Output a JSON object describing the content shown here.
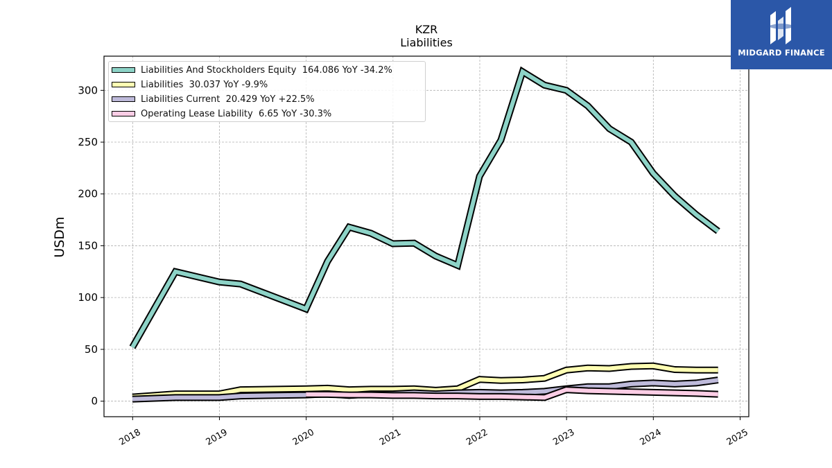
{
  "chart_data": {
    "type": "line",
    "title": "KZR",
    "subtitle": "Liabilities",
    "ylabel": "USDm",
    "xlabel": "",
    "ylim": [
      -15,
      333
    ],
    "xlim": [
      2017.67,
      2025.1
    ],
    "x_ticks": [
      "2018",
      "2019",
      "2020",
      "2021",
      "2022",
      "2023",
      "2024",
      "2025"
    ],
    "y_ticks": [
      "0",
      "50",
      "100",
      "150",
      "200",
      "250",
      "300"
    ],
    "grid": true,
    "legend_position": "top-left",
    "series": [
      {
        "name": "Liabilities And Stockholders Equity",
        "legend": "Liabilities And Stockholders Equity  164.086 YoY -34.2%",
        "color": "#8dd3c7",
        "points": [
          [
            "2017-12-31",
            52
          ],
          [
            "2018-06-30",
            125
          ],
          [
            "2018-12-31",
            115
          ],
          [
            "2019-03-31",
            113
          ],
          [
            "2019-12-31",
            89
          ],
          [
            "2020-03-31",
            135
          ],
          [
            "2020-06-30",
            168
          ],
          [
            "2020-09-30",
            162
          ],
          [
            "2020-12-31",
            152
          ],
          [
            "2021-03-31",
            152.5
          ],
          [
            "2021-06-30",
            140
          ],
          [
            "2021-09-30",
            131
          ],
          [
            "2021-12-31",
            217
          ],
          [
            "2022-03-31",
            252
          ],
          [
            "2022-06-30",
            318
          ],
          [
            "2022-09-30",
            305
          ],
          [
            "2022-12-31",
            300
          ],
          [
            "2023-03-31",
            285
          ],
          [
            "2023-06-30",
            263
          ],
          [
            "2023-09-30",
            250
          ],
          [
            "2023-12-31",
            220
          ],
          [
            "2024-03-31",
            198
          ],
          [
            "2024-06-30",
            180
          ],
          [
            "2024-09-30",
            164.086
          ]
        ]
      },
      {
        "name": "Liabilities",
        "legend": "Liabilities  30.037 YoY -9.9%",
        "color": "#ffffb3",
        "points": [
          [
            "2017-12-31",
            4
          ],
          [
            "2018-06-30",
            7
          ],
          [
            "2018-12-31",
            7
          ],
          [
            "2019-03-31",
            11
          ],
          [
            "2019-12-31",
            12
          ],
          [
            "2020-03-31",
            12.5
          ],
          [
            "2020-06-30",
            11
          ],
          [
            "2020-09-30",
            11.5
          ],
          [
            "2020-12-31",
            11.5
          ],
          [
            "2021-03-31",
            12
          ],
          [
            "2021-06-30",
            10.5
          ],
          [
            "2021-09-30",
            12
          ],
          [
            "2021-12-31",
            21
          ],
          [
            "2022-03-31",
            20
          ],
          [
            "2022-06-30",
            20.5
          ],
          [
            "2022-09-30",
            22
          ],
          [
            "2022-12-31",
            30
          ],
          [
            "2023-03-31",
            32
          ],
          [
            "2023-06-30",
            31.5
          ],
          [
            "2023-09-30",
            33.5
          ],
          [
            "2023-12-31",
            34
          ],
          [
            "2024-03-31",
            30.5
          ],
          [
            "2024-06-30",
            30
          ],
          [
            "2024-09-30",
            30.037
          ]
        ]
      },
      {
        "name": "Liabilities Current",
        "legend": "Liabilities Current  20.429 YoY +22.5%",
        "color": "#bebada",
        "points": [
          [
            "2017-12-31",
            2
          ],
          [
            "2018-06-30",
            3.5
          ],
          [
            "2018-12-31",
            3.5
          ],
          [
            "2019-03-31",
            5
          ],
          [
            "2019-12-31",
            6
          ],
          [
            "2020-03-31",
            7
          ],
          [
            "2020-06-30",
            5.5
          ],
          [
            "2020-09-30",
            7
          ],
          [
            "2020-12-31",
            7
          ],
          [
            "2021-03-31",
            8
          ],
          [
            "2021-06-30",
            7
          ],
          [
            "2021-09-30",
            8
          ],
          [
            "2021-12-31",
            8.5
          ],
          [
            "2022-03-31",
            8
          ],
          [
            "2022-06-30",
            8.5
          ],
          [
            "2022-09-30",
            9.5
          ],
          [
            "2022-12-31",
            12
          ],
          [
            "2023-03-31",
            14
          ],
          [
            "2023-06-30",
            14
          ],
          [
            "2023-09-30",
            16.5
          ],
          [
            "2023-12-31",
            17.5
          ],
          [
            "2024-03-31",
            16.5
          ],
          [
            "2024-06-30",
            17.5
          ],
          [
            "2024-09-30",
            20.429
          ]
        ]
      },
      {
        "name": "Operating Lease Liability",
        "legend": "Operating Lease Liability  6.65 YoY -30.3%",
        "color": "#fccde5",
        "points": [
          [
            "2019-12-31",
            6.5
          ],
          [
            "2020-03-31",
            6.5
          ],
          [
            "2020-06-30",
            6
          ],
          [
            "2020-09-30",
            6
          ],
          [
            "2020-12-31",
            5.5
          ],
          [
            "2021-03-31",
            5.5
          ],
          [
            "2021-06-30",
            5
          ],
          [
            "2021-09-30",
            5
          ],
          [
            "2021-12-31",
            4.5
          ],
          [
            "2022-03-31",
            4.5
          ],
          [
            "2022-06-30",
            4
          ],
          [
            "2022-09-30",
            3.5
          ],
          [
            "2022-12-31",
            11
          ],
          [
            "2023-03-31",
            10
          ],
          [
            "2023-06-30",
            9.5
          ],
          [
            "2023-09-30",
            9
          ],
          [
            "2023-12-31",
            8.5
          ],
          [
            "2024-03-31",
            8
          ],
          [
            "2024-06-30",
            7.5
          ],
          [
            "2024-09-30",
            6.65
          ]
        ]
      }
    ]
  },
  "logo": {
    "text": "MIDGARD FINANCE",
    "color": "#2b57a8"
  }
}
